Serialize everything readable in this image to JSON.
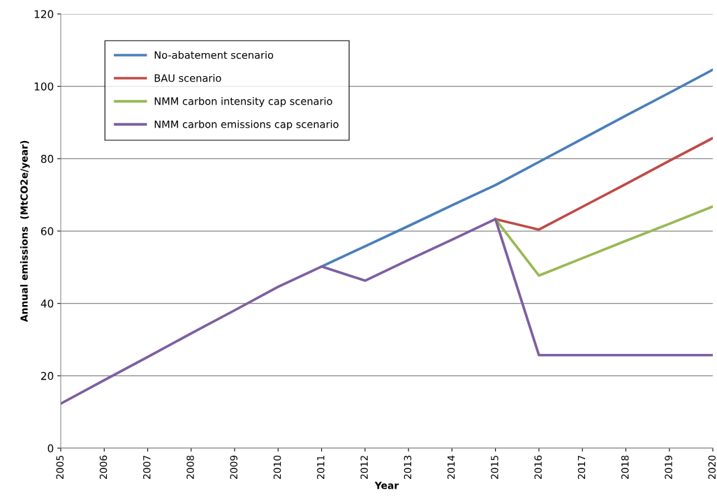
{
  "chart_data": {
    "type": "line",
    "xlabel": "Year",
    "ylabel": "Annual emissions  (MtCO2e/year)",
    "x": [
      2005,
      2006,
      2007,
      2008,
      2009,
      2010,
      2011,
      2012,
      2013,
      2014,
      2015,
      2016,
      2017,
      2018,
      2019,
      2020
    ],
    "series": [
      {
        "name": "No-abatement scenario",
        "color": "#4a7ebb",
        "values": [
          null,
          null,
          null,
          null,
          null,
          null,
          50.2,
          55.8,
          61.4,
          67.1,
          72.7,
          79.1,
          85.5,
          91.9,
          98.2,
          104.6
        ]
      },
      {
        "name": "BAU scenario",
        "color": "#be4b48",
        "values": [
          null,
          null,
          null,
          null,
          null,
          null,
          null,
          null,
          null,
          null,
          63.3,
          60.4,
          66.7,
          73.0,
          79.4,
          85.7
        ]
      },
      {
        "name": "NMM carbon intensity cap scenario",
        "color": "#98b954",
        "values": [
          null,
          null,
          null,
          null,
          null,
          null,
          null,
          null,
          null,
          null,
          63.3,
          47.7,
          52.5,
          57.3,
          62.0,
          66.8
        ]
      },
      {
        "name": "NMM carbon emissions cap scenario",
        "color": "#7d5fa0",
        "values": [
          12.3,
          18.8,
          25.2,
          31.7,
          38.1,
          44.6,
          50.2,
          46.3,
          52.0,
          57.6,
          63.3,
          25.7,
          25.7,
          25.7,
          25.7,
          25.7
        ]
      }
    ],
    "xlim": [
      2005,
      2020
    ],
    "xticks": [
      2005,
      2006,
      2007,
      2008,
      2009,
      2010,
      2011,
      2012,
      2013,
      2014,
      2015,
      2016,
      2017,
      2018,
      2019,
      2020
    ],
    "ylim": [
      0,
      120
    ],
    "yticks": [
      0,
      20,
      40,
      60,
      80,
      100,
      120
    ],
    "grid": "y",
    "legend": "top left",
    "marker": "none",
    "line_style": "solid"
  }
}
